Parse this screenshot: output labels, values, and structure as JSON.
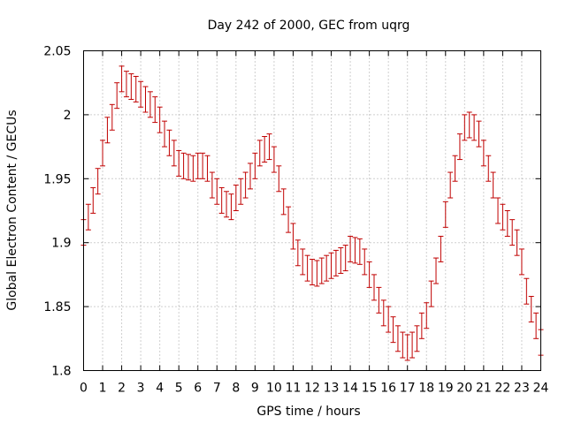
{
  "chart_data": {
    "type": "scatter",
    "title": "Day 242 of 2000, GEC from uqrg",
    "xlabel": "GPS time / hours",
    "ylabel": "Global Electron Content / GECUs",
    "xlim": [
      0,
      24
    ],
    "ylim": [
      1.8,
      2.05
    ],
    "x_ticks": [
      "0",
      "1",
      "2",
      "3",
      "4",
      "5",
      "6",
      "7",
      "8",
      "9",
      "10",
      "11",
      "12",
      "13",
      "14",
      "15",
      "16",
      "17",
      "18",
      "19",
      "20",
      "21",
      "22",
      "23",
      "24"
    ],
    "y_ticks": [
      "1.8",
      "1.85",
      "1.9",
      "1.95",
      "2",
      "2.05"
    ],
    "grid": true,
    "error_bar_color": "#c00000",
    "error_half_width": 0.01,
    "series": [
      {
        "x": [
          0,
          0.25,
          0.5,
          0.75,
          1,
          1.25,
          1.5,
          1.75,
          2,
          2.25,
          2.5,
          2.75,
          3,
          3.25,
          3.5,
          3.75,
          4,
          4.25,
          4.5,
          4.75,
          5,
          5.25,
          5.5,
          5.75,
          6,
          6.25,
          6.5,
          6.75,
          7,
          7.25,
          7.5,
          7.75,
          8,
          8.25,
          8.5,
          8.75,
          9,
          9.25,
          9.5,
          9.75,
          10,
          10.25,
          10.5,
          10.75,
          11,
          11.25,
          11.5,
          11.75,
          12,
          12.25,
          12.5,
          12.75,
          13,
          13.25,
          13.5,
          13.75,
          14,
          14.25,
          14.5,
          14.75,
          15,
          15.25,
          15.5,
          15.75,
          16,
          16.25,
          16.5,
          16.75,
          17,
          17.25,
          17.5,
          17.75,
          18,
          18.25,
          18.5,
          18.75,
          19,
          19.25,
          19.5,
          19.75,
          20,
          20.25,
          20.5,
          20.75,
          21,
          21.25,
          21.5,
          21.75,
          22,
          22.25,
          22.5,
          22.75,
          23,
          23.25,
          23.5,
          23.75,
          24
        ],
        "y": [
          1.908,
          1.92,
          1.933,
          1.948,
          1.97,
          1.988,
          1.998,
          2.015,
          2.028,
          2.024,
          2.022,
          2.02,
          2.016,
          2.012,
          2.008,
          2.004,
          1.996,
          1.985,
          1.978,
          1.97,
          1.962,
          1.96,
          1.959,
          1.958,
          1.96,
          1.96,
          1.958,
          1.945,
          1.94,
          1.933,
          1.93,
          1.928,
          1.935,
          1.94,
          1.945,
          1.952,
          1.96,
          1.97,
          1.973,
          1.975,
          1.965,
          1.95,
          1.932,
          1.918,
          1.905,
          1.892,
          1.885,
          1.88,
          1.877,
          1.876,
          1.878,
          1.88,
          1.882,
          1.884,
          1.886,
          1.888,
          1.895,
          1.894,
          1.893,
          1.885,
          1.875,
          1.865,
          1.855,
          1.845,
          1.84,
          1.832,
          1.825,
          1.82,
          1.818,
          1.82,
          1.825,
          1.835,
          1.843,
          1.86,
          1.878,
          1.895,
          1.922,
          1.945,
          1.958,
          1.975,
          1.99,
          1.992,
          1.99,
          1.985,
          1.97,
          1.958,
          1.945,
          1.925,
          1.92,
          1.915,
          1.908,
          1.9,
          1.885,
          1.862,
          1.848,
          1.835,
          1.822
        ]
      }
    ]
  }
}
